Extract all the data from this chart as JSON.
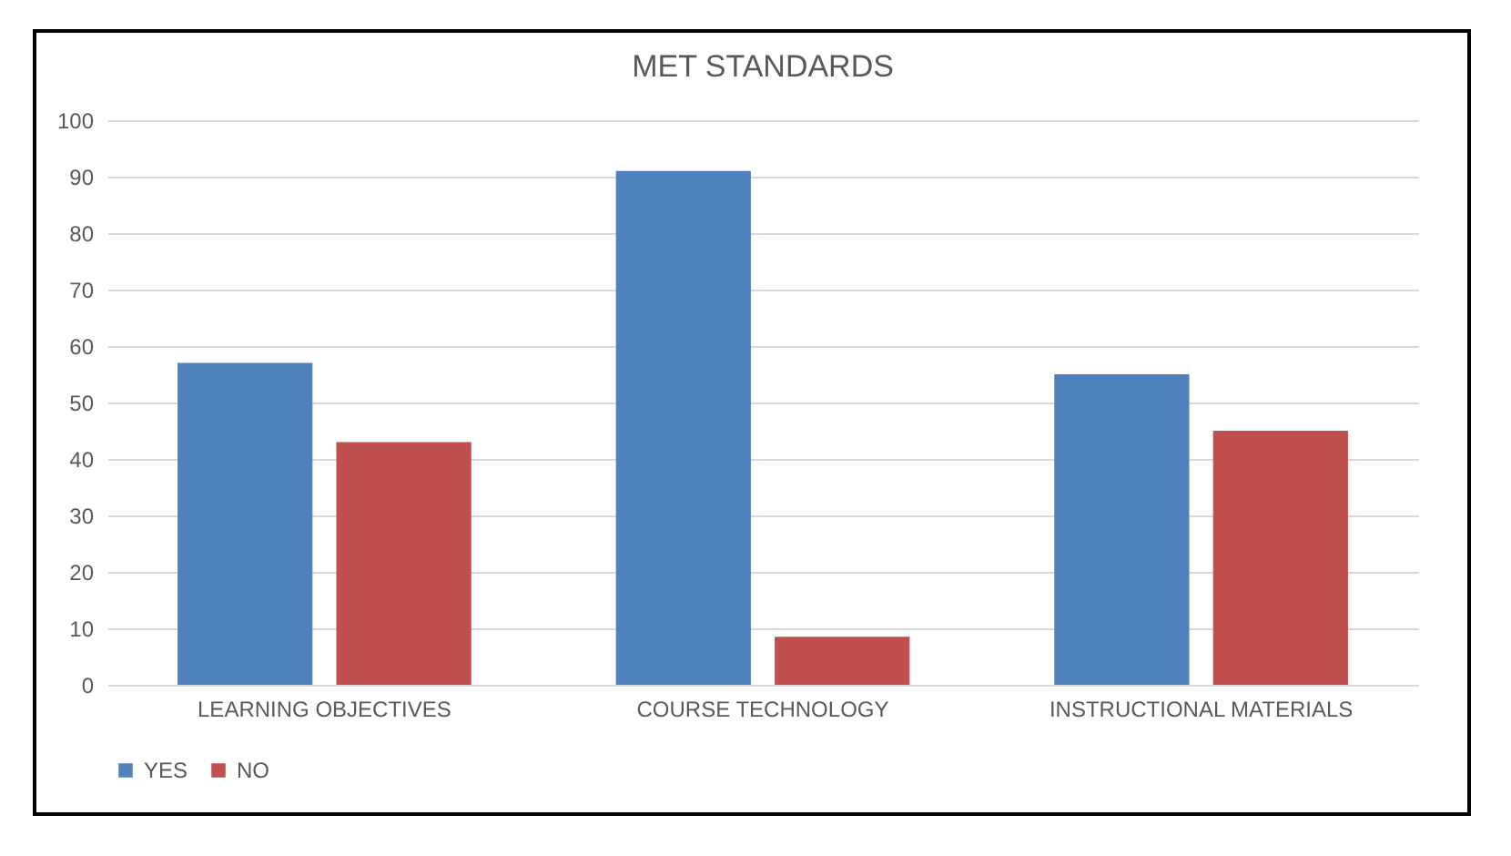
{
  "chart_data": {
    "type": "bar",
    "title": "MET STANDARDS",
    "categories": [
      "LEARNING OBJECTIVES",
      "COURSE TECHNOLOGY",
      "INSTRUCTIONAL MATERIALS"
    ],
    "series": [
      {
        "name": "YES",
        "color": "#4f81bd",
        "values": [
          57,
          91,
          55
        ]
      },
      {
        "name": "NO",
        "color": "#c0504d",
        "values": [
          43,
          8.5,
          45
        ]
      }
    ],
    "ylim": [
      0,
      100
    ],
    "yticks": [
      0,
      10,
      20,
      30,
      40,
      50,
      60,
      70,
      80,
      90,
      100
    ],
    "grid": "y",
    "legend": "bottom"
  }
}
